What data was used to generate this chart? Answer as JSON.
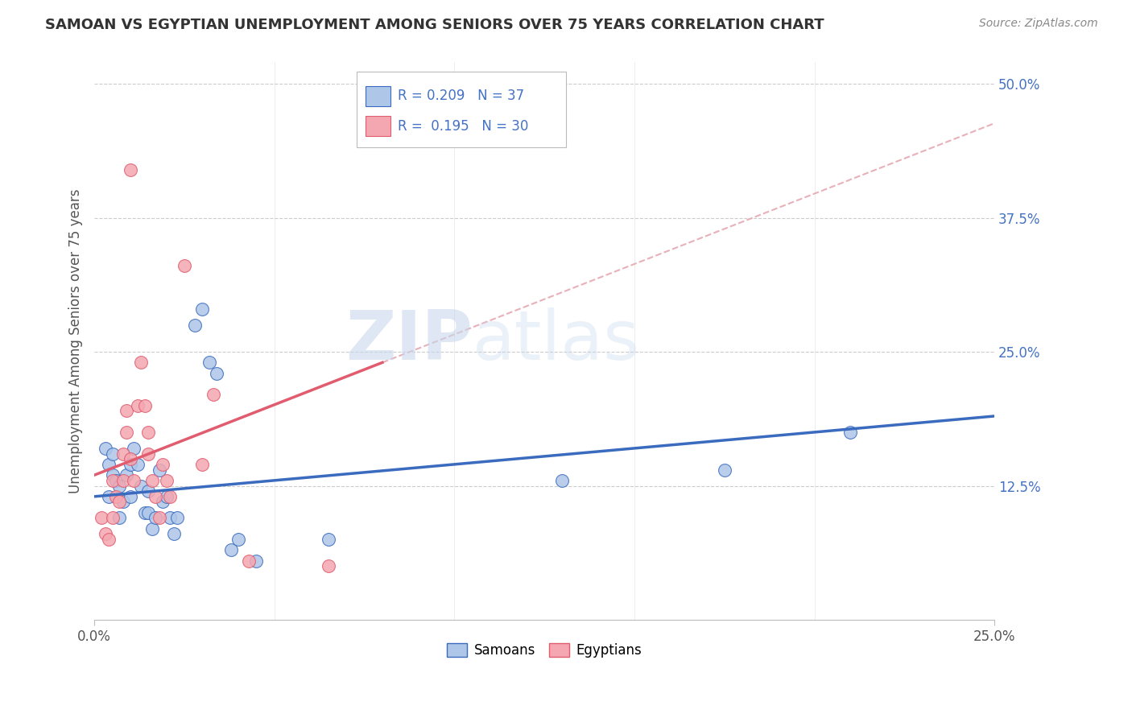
{
  "title": "SAMOAN VS EGYPTIAN UNEMPLOYMENT AMONG SENIORS OVER 75 YEARS CORRELATION CHART",
  "source": "Source: ZipAtlas.com",
  "ylabel_label": "Unemployment Among Seniors over 75 years",
  "samoan_R": "0.209",
  "samoan_N": "37",
  "egyptian_R": "0.195",
  "egyptian_N": "30",
  "samoan_color": "#aec6e8",
  "egyptian_color": "#f4a7b0",
  "samoan_line_color": "#3a6bbf",
  "egyptian_line_color": "#e05c6e",
  "samoan_scatter": [
    [
      0.003,
      0.16
    ],
    [
      0.004,
      0.145
    ],
    [
      0.004,
      0.115
    ],
    [
      0.005,
      0.155
    ],
    [
      0.005,
      0.135
    ],
    [
      0.006,
      0.13
    ],
    [
      0.007,
      0.095
    ],
    [
      0.007,
      0.125
    ],
    [
      0.008,
      0.11
    ],
    [
      0.009,
      0.135
    ],
    [
      0.01,
      0.145
    ],
    [
      0.01,
      0.115
    ],
    [
      0.011,
      0.16
    ],
    [
      0.012,
      0.145
    ],
    [
      0.013,
      0.125
    ],
    [
      0.014,
      0.1
    ],
    [
      0.015,
      0.12
    ],
    [
      0.015,
      0.1
    ],
    [
      0.016,
      0.085
    ],
    [
      0.017,
      0.095
    ],
    [
      0.018,
      0.14
    ],
    [
      0.019,
      0.11
    ],
    [
      0.02,
      0.115
    ],
    [
      0.021,
      0.095
    ],
    [
      0.022,
      0.08
    ],
    [
      0.023,
      0.095
    ],
    [
      0.028,
      0.275
    ],
    [
      0.03,
      0.29
    ],
    [
      0.032,
      0.24
    ],
    [
      0.034,
      0.23
    ],
    [
      0.038,
      0.065
    ],
    [
      0.04,
      0.075
    ],
    [
      0.045,
      0.055
    ],
    [
      0.065,
      0.075
    ],
    [
      0.13,
      0.13
    ],
    [
      0.175,
      0.14
    ],
    [
      0.21,
      0.175
    ]
  ],
  "egyptian_scatter": [
    [
      0.002,
      0.095
    ],
    [
      0.003,
      0.08
    ],
    [
      0.004,
      0.075
    ],
    [
      0.005,
      0.13
    ],
    [
      0.005,
      0.095
    ],
    [
      0.006,
      0.115
    ],
    [
      0.007,
      0.11
    ],
    [
      0.008,
      0.13
    ],
    [
      0.008,
      0.155
    ],
    [
      0.009,
      0.175
    ],
    [
      0.009,
      0.195
    ],
    [
      0.01,
      0.15
    ],
    [
      0.011,
      0.13
    ],
    [
      0.012,
      0.2
    ],
    [
      0.013,
      0.24
    ],
    [
      0.014,
      0.2
    ],
    [
      0.015,
      0.175
    ],
    [
      0.015,
      0.155
    ],
    [
      0.016,
      0.13
    ],
    [
      0.017,
      0.115
    ],
    [
      0.018,
      0.095
    ],
    [
      0.019,
      0.145
    ],
    [
      0.02,
      0.13
    ],
    [
      0.021,
      0.115
    ],
    [
      0.025,
      0.33
    ],
    [
      0.03,
      0.145
    ],
    [
      0.033,
      0.21
    ],
    [
      0.043,
      0.055
    ],
    [
      0.065,
      0.05
    ],
    [
      0.01,
      0.42
    ]
  ],
  "xlim": [
    0.0,
    0.25
  ],
  "ylim": [
    0.0,
    0.52
  ],
  "xticks": [
    0.0,
    0.25
  ],
  "yticks": [
    0.125,
    0.25,
    0.375,
    0.5
  ],
  "grid_color": "#cccccc",
  "background_color": "#ffffff",
  "watermark_zip": "ZIP",
  "watermark_atlas": "atlas",
  "dashed_line_color": "#e8b0b8"
}
